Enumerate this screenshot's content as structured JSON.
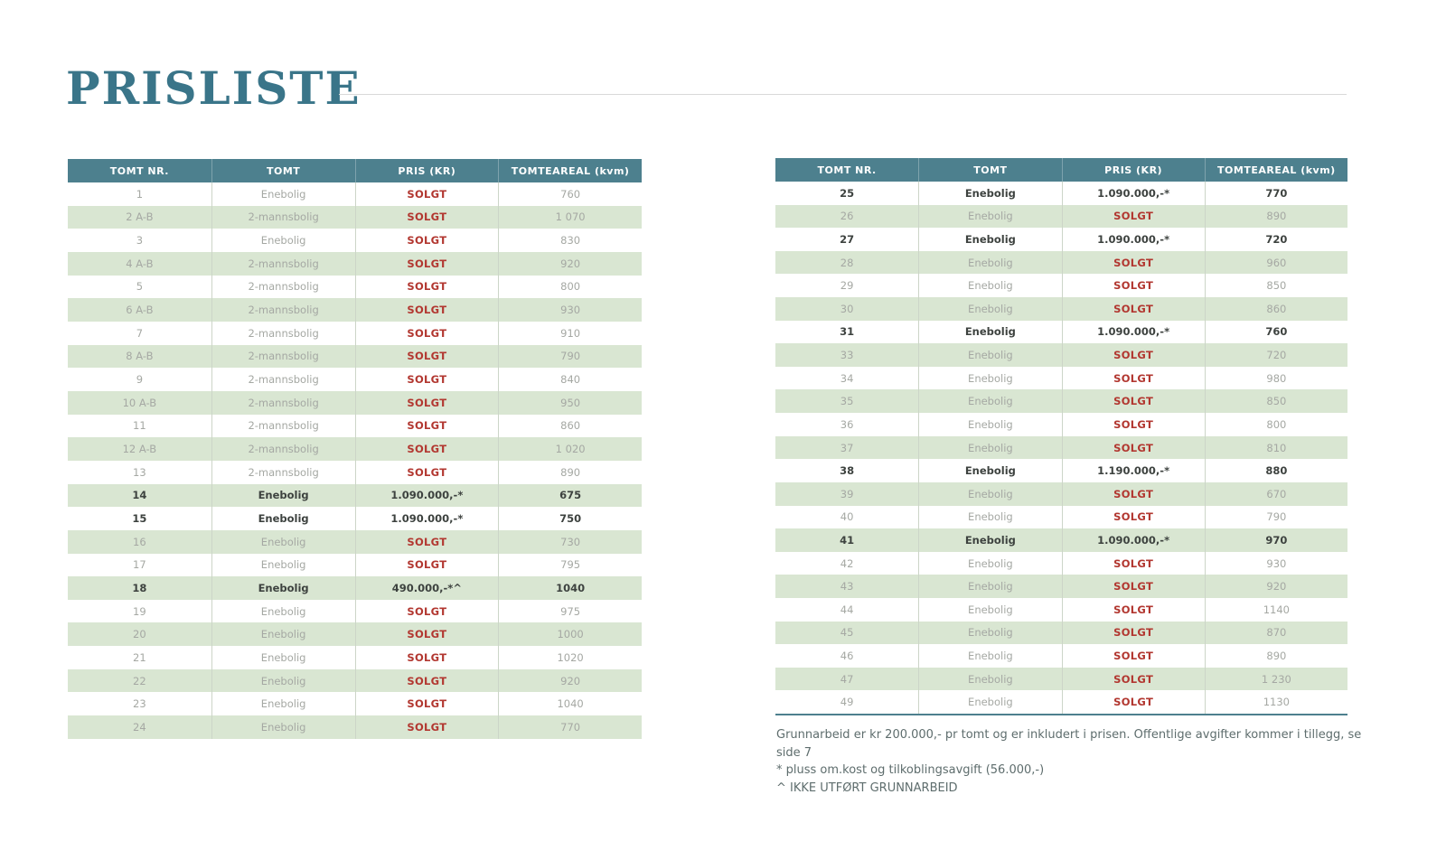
{
  "title": "PRISLISTE",
  "columns": [
    "TOMT NR.",
    "TOMT",
    "PRIS (KR)",
    "TOMTEAREAL (kvm)"
  ],
  "colors": {
    "header_teal": "#4d808e",
    "title_teal": "#3a7589",
    "row_green": "#d9e6d2",
    "solgt_red": "#b23730",
    "sold_text_grey": "#a5a8a3",
    "available_text": "#3d423f"
  },
  "left_table": {
    "rows": [
      {
        "nr": "1",
        "tomt": "Enebolig",
        "pris": "SOLGT",
        "areal": "760",
        "status": "sold"
      },
      {
        "nr": "2 A-B",
        "tomt": "2-mannsbolig",
        "pris": "SOLGT",
        "areal": "1 070",
        "status": "sold"
      },
      {
        "nr": "3",
        "tomt": "Enebolig",
        "pris": "SOLGT",
        "areal": "830",
        "status": "sold"
      },
      {
        "nr": "4 A-B",
        "tomt": "2-mannsbolig",
        "pris": "SOLGT",
        "areal": "920",
        "status": "sold"
      },
      {
        "nr": "5",
        "tomt": "2-mannsbolig",
        "pris": "SOLGT",
        "areal": "800",
        "status": "sold"
      },
      {
        "nr": "6 A-B",
        "tomt": "2-mannsbolig",
        "pris": "SOLGT",
        "areal": "930",
        "status": "sold"
      },
      {
        "nr": "7",
        "tomt": "2-mannsbolig",
        "pris": "SOLGT",
        "areal": "910",
        "status": "sold"
      },
      {
        "nr": "8 A-B",
        "tomt": "2-mannsbolig",
        "pris": "SOLGT",
        "areal": "790",
        "status": "sold"
      },
      {
        "nr": "9",
        "tomt": "2-mannsbolig",
        "pris": "SOLGT",
        "areal": "840",
        "status": "sold"
      },
      {
        "nr": "10 A-B",
        "tomt": "2-mannsbolig",
        "pris": "SOLGT",
        "areal": "950",
        "status": "sold"
      },
      {
        "nr": "11",
        "tomt": "2-mannsbolig",
        "pris": "SOLGT",
        "areal": "860",
        "status": "sold"
      },
      {
        "nr": "12 A-B",
        "tomt": "2-mannsbolig",
        "pris": "SOLGT",
        "areal": "1 020",
        "status": "sold"
      },
      {
        "nr": "13",
        "tomt": "2-mannsbolig",
        "pris": "SOLGT",
        "areal": "890",
        "status": "sold"
      },
      {
        "nr": "14",
        "tomt": "Enebolig",
        "pris": "1.090.000,-*",
        "areal": "675",
        "status": "available"
      },
      {
        "nr": "15",
        "tomt": "Enebolig",
        "pris": "1.090.000,-*",
        "areal": "750",
        "status": "available"
      },
      {
        "nr": "16",
        "tomt": "Enebolig",
        "pris": "SOLGT",
        "areal": "730",
        "status": "sold"
      },
      {
        "nr": "17",
        "tomt": "Enebolig",
        "pris": "SOLGT",
        "areal": "795",
        "status": "sold"
      },
      {
        "nr": "18",
        "tomt": "Enebolig",
        "pris": "490.000,-*^",
        "areal": "1040",
        "status": "available"
      },
      {
        "nr": "19",
        "tomt": "Enebolig",
        "pris": "SOLGT",
        "areal": "975",
        "status": "sold"
      },
      {
        "nr": "20",
        "tomt": "Enebolig",
        "pris": "SOLGT",
        "areal": "1000",
        "status": "sold"
      },
      {
        "nr": "21",
        "tomt": "Enebolig",
        "pris": "SOLGT",
        "areal": "1020",
        "status": "sold"
      },
      {
        "nr": "22",
        "tomt": "Enebolig",
        "pris": "SOLGT",
        "areal": "920",
        "status": "sold"
      },
      {
        "nr": "23",
        "tomt": "Enebolig",
        "pris": "SOLGT",
        "areal": "1040",
        "status": "sold"
      },
      {
        "nr": "24",
        "tomt": "Enebolig",
        "pris": "SOLGT",
        "areal": "770",
        "status": "sold"
      }
    ]
  },
  "right_table": {
    "rows": [
      {
        "nr": "25",
        "tomt": "Enebolig",
        "pris": "1.090.000,-*",
        "areal": "770",
        "status": "available"
      },
      {
        "nr": "26",
        "tomt": "Enebolig",
        "pris": "SOLGT",
        "areal": "890",
        "status": "sold"
      },
      {
        "nr": "27",
        "tomt": "Enebolig",
        "pris": "1.090.000,-*",
        "areal": "720",
        "status": "available"
      },
      {
        "nr": "28",
        "tomt": "Enebolig",
        "pris": "SOLGT",
        "areal": "960",
        "status": "sold"
      },
      {
        "nr": "29",
        "tomt": "Enebolig",
        "pris": "SOLGT",
        "areal": "850",
        "status": "sold"
      },
      {
        "nr": "30",
        "tomt": "Enebolig",
        "pris": "SOLGT",
        "areal": "860",
        "status": "sold"
      },
      {
        "nr": "31",
        "tomt": "Enebolig",
        "pris": "1.090.000,-*",
        "areal": "760",
        "status": "available"
      },
      {
        "nr": "33",
        "tomt": "Enebolig",
        "pris": "SOLGT",
        "areal": "720",
        "status": "sold"
      },
      {
        "nr": "34",
        "tomt": "Enebolig",
        "pris": "SOLGT",
        "areal": "980",
        "status": "sold"
      },
      {
        "nr": "35",
        "tomt": "Enebolig",
        "pris": "SOLGT",
        "areal": "850",
        "status": "sold"
      },
      {
        "nr": "36",
        "tomt": "Enebolig",
        "pris": "SOLGT",
        "areal": "800",
        "status": "sold"
      },
      {
        "nr": "37",
        "tomt": "Enebolig",
        "pris": "SOLGT",
        "areal": "810",
        "status": "sold"
      },
      {
        "nr": "38",
        "tomt": "Enebolig",
        "pris": "1.190.000,-*",
        "areal": "880",
        "status": "available"
      },
      {
        "nr": "39",
        "tomt": "Enebolig",
        "pris": "SOLGT",
        "areal": "670",
        "status": "sold"
      },
      {
        "nr": "40",
        "tomt": "Enebolig",
        "pris": "SOLGT",
        "areal": "790",
        "status": "sold"
      },
      {
        "nr": "41",
        "tomt": "Enebolig",
        "pris": "1.090.000,-*",
        "areal": "970",
        "status": "available"
      },
      {
        "nr": "42",
        "tomt": "Enebolig",
        "pris": "SOLGT",
        "areal": "930",
        "status": "sold"
      },
      {
        "nr": "43",
        "tomt": "Enebolig",
        "pris": "SOLGT",
        "areal": "920",
        "status": "sold"
      },
      {
        "nr": "44",
        "tomt": "Enebolig",
        "pris": "SOLGT",
        "areal": "1140",
        "status": "sold"
      },
      {
        "nr": "45",
        "tomt": "Enebolig",
        "pris": "SOLGT",
        "areal": "870",
        "status": "sold"
      },
      {
        "nr": "46",
        "tomt": "Enebolig",
        "pris": "SOLGT",
        "areal": "890",
        "status": "sold"
      },
      {
        "nr": "47",
        "tomt": "Enebolig",
        "pris": "SOLGT",
        "areal": "1 230",
        "status": "sold"
      },
      {
        "nr": "49",
        "tomt": "Enebolig",
        "pris": "SOLGT",
        "areal": "1130",
        "status": "sold"
      }
    ]
  },
  "footnotes": [
    "Grunnarbeid er kr 200.000,- pr tomt og er inkludert i prisen. Offentlige avgifter kommer i tillegg, se side 7",
    "* pluss om.kost og tilkoblingsavgift (56.000,-)",
    "^ IKKE UTFØRT GRUNNARBEID"
  ]
}
